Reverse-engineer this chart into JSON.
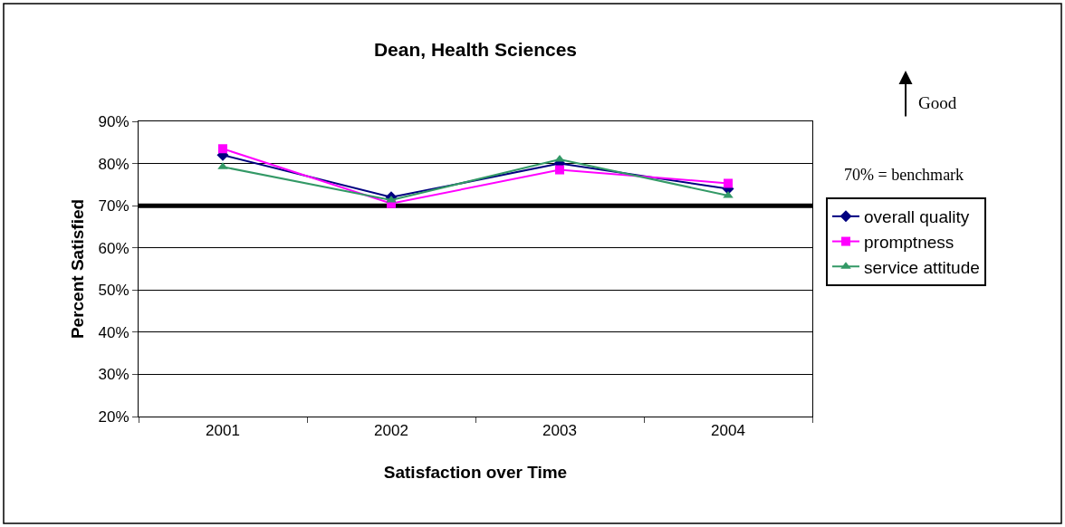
{
  "chart_data": {
    "type": "line",
    "title": "Dean, Health Sciences",
    "xlabel": "Satisfaction over Time",
    "ylabel": "Percent Satisfied",
    "categories": [
      "2001",
      "2002",
      "2003",
      "2004"
    ],
    "series": [
      {
        "name": "overall quality",
        "color": "#000080",
        "marker": "diamond",
        "values": [
          82,
          72,
          80,
          74
        ]
      },
      {
        "name": "promptness",
        "color": "#ff00ff",
        "marker": "square",
        "values": [
          83.5,
          70.5,
          78.5,
          75.3
        ]
      },
      {
        "name": "service attitude",
        "color": "#339966",
        "marker": "triangle",
        "values": [
          79.2,
          71.3,
          81,
          72.4
        ]
      }
    ],
    "ylim": [
      20,
      90
    ],
    "yticks": [
      {
        "value": 20,
        "label": "20%"
      },
      {
        "value": 30,
        "label": "30%"
      },
      {
        "value": 40,
        "label": "40%"
      },
      {
        "value": 50,
        "label": "50%"
      },
      {
        "value": 60,
        "label": "60%"
      },
      {
        "value": 70,
        "label": "70%"
      },
      {
        "value": 80,
        "label": "80%"
      },
      {
        "value": 90,
        "label": "90%"
      }
    ],
    "ref_lines": [
      {
        "axis": "y",
        "value": 70,
        "color": "#000000"
      }
    ],
    "annotations": [
      "Good",
      "70% = benchmark"
    ],
    "grid": "y",
    "legend": "right",
    "line_style": "solid"
  }
}
